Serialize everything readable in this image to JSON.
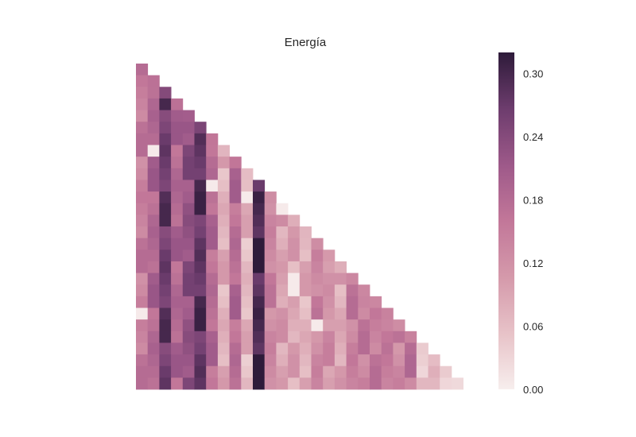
{
  "chart_data": {
    "type": "heatmap",
    "title": "Energía",
    "xlabel": "",
    "ylabel": "",
    "mask": "upper-triangle",
    "n_rows": 28,
    "vmin": 0.0,
    "vmax": 0.32,
    "colorbar": {
      "ticks": [
        0.0,
        0.06,
        0.12,
        0.18,
        0.24,
        0.3
      ],
      "tick_labels": [
        "0.00",
        "0.06",
        "0.12",
        "0.18",
        "0.24",
        "0.30"
      ]
    },
    "colormap": [
      "#f7eeed",
      "#e8c4c9",
      "#d59aab",
      "#c27799",
      "#9f5a8a",
      "#6e3d6e",
      "#2e1b3a"
    ],
    "column_profile": [
      0.15,
      0.19,
      0.27,
      0.19,
      0.23,
      0.28,
      0.18,
      0.08,
      0.18,
      0.07,
      0.3,
      0.14,
      0.1,
      0.09,
      0.08,
      0.14,
      0.12,
      0.09,
      0.15,
      0.15,
      0.15,
      0.16,
      0.14,
      0.16,
      0.05,
      0.07,
      0.05,
      0.03
    ],
    "row_pattern": [
      0.0,
      0.03,
      -0.02,
      0.01,
      -0.03,
      0.02,
      0.0,
      -0.02,
      0.03,
      -0.01
    ],
    "first_row_value": 0.18,
    "blank_cells": [
      [
        7,
        1
      ],
      [
        10,
        6
      ],
      [
        11,
        9
      ],
      [
        12,
        12
      ],
      [
        14,
        16
      ],
      [
        16,
        18
      ],
      [
        18,
        13
      ],
      [
        19,
        13
      ],
      [
        21,
        0
      ],
      [
        22,
        15
      ]
    ]
  }
}
